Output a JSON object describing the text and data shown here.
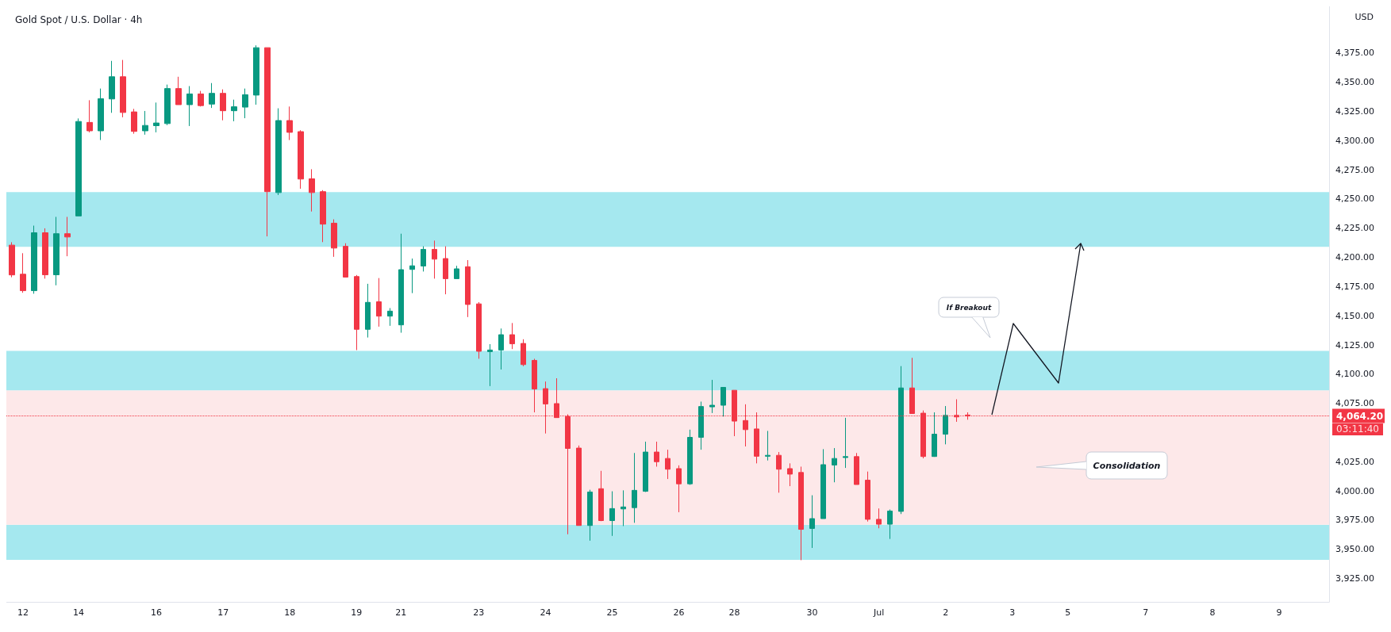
{
  "chart_data": {
    "type": "candlestick",
    "title": "Gold Spot / U.S. Dollar · 4h",
    "ylabel": "USD",
    "categories": [
      null,
      "12",
      null,
      null,
      null,
      null,
      "14",
      null,
      null,
      null,
      null,
      null,
      null,
      "16",
      null,
      null,
      null,
      null,
      null,
      "17",
      null,
      null,
      null,
      null,
      null,
      "18",
      null,
      null,
      null,
      null,
      null,
      "19",
      null,
      null,
      null,
      "21",
      null,
      null,
      null,
      null,
      null,
      null,
      "23",
      null,
      null,
      null,
      null,
      null,
      "24",
      null,
      null,
      null,
      null,
      null,
      "25",
      null,
      null,
      null,
      null,
      null,
      "26",
      null,
      null,
      null,
      null,
      "28",
      null,
      null,
      null,
      null,
      null,
      null,
      "30",
      null,
      null,
      null,
      null,
      null,
      "Jul",
      null,
      null,
      null,
      null,
      null,
      "2",
      null,
      null,
      null,
      null,
      null,
      "3",
      null,
      null,
      null,
      null,
      "5",
      null,
      null,
      null,
      null,
      null,
      null,
      "7",
      null,
      null,
      null,
      null,
      null,
      "8",
      null,
      null,
      null,
      null,
      null,
      "9",
      null,
      null,
      null,
      null
    ],
    "ohlc": [
      [
        4210.5,
        4213,
        4183,
        4185
      ],
      [
        4185.6,
        4203.6,
        4169.7,
        4171.5
      ],
      [
        4171.5,
        4227.2,
        4168.9,
        4221.1
      ],
      [
        4221.1,
        4224.9,
        4181.8,
        4185.1
      ],
      [
        4185.1,
        4234.7,
        4176.1,
        4220.3
      ],
      [
        4220.3,
        4234.7,
        4201.0,
        4217.5
      ],
      [
        4235.5,
        4319.0,
        4235.5,
        4316.4
      ],
      [
        4315.6,
        4334.6,
        4307.1,
        4308.4
      ],
      [
        4308.4,
        4344.6,
        4300.5,
        4335.9
      ],
      [
        4335.7,
        4368.3,
        4323.8,
        4354.7
      ],
      [
        4354.7,
        4369.1,
        4320.0,
        4324.1
      ],
      [
        4324.6,
        4327.2,
        4305.9,
        4307.9
      ],
      [
        4308.4,
        4325.4,
        4305.1,
        4313.0
      ],
      [
        4312.8,
        4332.6,
        4307.1,
        4315.1
      ],
      [
        4314.6,
        4348.0,
        4313.3,
        4344.6
      ],
      [
        4344.6,
        4354.7,
        4330.8,
        4330.8
      ],
      [
        4330.8,
        4346.7,
        4312.5,
        4340.0
      ],
      [
        4340.0,
        4342.6,
        4329.2,
        4330.0
      ],
      [
        4331.3,
        4349.3,
        4328.0,
        4340.5
      ],
      [
        4340.5,
        4343.9,
        4317.4,
        4325.6
      ],
      [
        4325.6,
        4335.1,
        4316.6,
        4329.0
      ],
      [
        4328.7,
        4344.6,
        4319.2,
        4339.3
      ],
      [
        4339.0,
        4381.6,
        4330.8,
        4379.6
      ],
      [
        4379.6,
        4379.6,
        4218.0,
        4256.3
      ],
      [
        4255.5,
        4327.7,
        4253.4,
        4317.2
      ],
      [
        4317.2,
        4329.2,
        4300.5,
        4307.1
      ],
      [
        4307.7,
        4308.9,
        4258.8,
        4267.1
      ],
      [
        4267.3,
        4275.5,
        4239.3,
        4255.5
      ],
      [
        4256.3,
        4257.6,
        4213.1,
        4228.5
      ],
      [
        4229.3,
        4232.6,
        4200.5,
        4208.0
      ],
      [
        4209.5,
        4212.1,
        4183.1,
        4183.1
      ],
      [
        4183.6,
        4184.9,
        4120.6,
        4138.4
      ],
      [
        4138.4,
        4177.4,
        4131.4,
        4161.5
      ],
      [
        4162.0,
        4182.3,
        4140.7,
        4149.7
      ],
      [
        4149.7,
        4156.6,
        4141.4,
        4154.0
      ],
      [
        4142.2,
        4220.3,
        4135.5,
        4189.5
      ],
      [
        4189.7,
        4199.0,
        4169.4,
        4192.8
      ],
      [
        4192.6,
        4209.5,
        4187.9,
        4206.9
      ],
      [
        4206.9,
        4214.4,
        4181.8,
        4198.5
      ],
      [
        4199.0,
        4209.5,
        4168.4,
        4181.8
      ],
      [
        4181.8,
        4192.8,
        4181.8,
        4190.2
      ],
      [
        4192.0,
        4197.7,
        4148.9,
        4159.7
      ],
      [
        4160.2,
        4161.7,
        4113.2,
        4119.6
      ],
      [
        4119.3,
        4125.7,
        4089.8,
        4120.7
      ],
      [
        4120.7,
        4139.1,
        4104.0,
        4133.8
      ],
      [
        4133.8,
        4143.8,
        4121.5,
        4126.0
      ],
      [
        4126.3,
        4129.9,
        4106.8,
        4108.2
      ],
      [
        4111.8,
        4113.2,
        4067.3,
        4087.3
      ],
      [
        4087.6,
        4093.7,
        4049.2,
        4074.5
      ],
      [
        4074.8,
        4096.5,
        4062.8,
        4062.8
      ],
      [
        4063.7,
        4065.6,
        3962.9,
        4036.4
      ],
      [
        4036.7,
        4038.9,
        3970.4,
        3970.4
      ],
      [
        3970.4,
        4001.0,
        3957.4,
        3999.1
      ],
      [
        4001.9,
        4017.2,
        3974.1,
        3974.6
      ],
      [
        3974.6,
        3999.7,
        3961.5,
        3984.9
      ],
      [
        3984.6,
        4000.5,
        3969.9,
        3986.3
      ],
      [
        3985.7,
        4032.5,
        3972.7,
        4000.5
      ],
      [
        3999.7,
        4042.2,
        3999.1,
        4033.3
      ],
      [
        4033.3,
        4042.2,
        4020.8,
        4025.0
      ],
      [
        4027.8,
        4035.3,
        4010.2,
        4018.6
      ],
      [
        4019.1,
        4021.9,
        3981.8,
        4006.1
      ],
      [
        4006.1,
        4052.5,
        4005.2,
        4045.9
      ],
      [
        4045.9,
        4076.5,
        4035.3,
        4072.3
      ],
      [
        4072.0,
        4095.1,
        4066.7,
        4073.4
      ],
      [
        4073.4,
        4088.7,
        4063.7,
        4088.7
      ],
      [
        4086.2,
        4086.2,
        4046.9,
        4059.8
      ],
      [
        4060.3,
        4074.2,
        4038.1,
        4052.5
      ],
      [
        4053.1,
        4067.3,
        4023.6,
        4029.7
      ],
      [
        4029.7,
        4051.4,
        4026.1,
        4030.5
      ],
      [
        4030.5,
        4033.3,
        3998.5,
        4018.6
      ],
      [
        4019.1,
        4023.6,
        4004.1,
        4014.4
      ],
      [
        4015.8,
        4020.8,
        3940.7,
        3967.1
      ],
      [
        3967.9,
        3996.3,
        3951.2,
        3976.3
      ],
      [
        3976.3,
        4035.8,
        3976.3,
        4022.5
      ],
      [
        4022.2,
        4036.7,
        4007.4,
        4027.8
      ],
      [
        4028.6,
        4062.6,
        4019.7,
        4029.4
      ],
      [
        4029.4,
        4032.5,
        4005.5,
        4005.5
      ],
      [
        4009.2,
        4016.6,
        3973.8,
        3975.7
      ],
      [
        3975.7,
        3985.0,
        3968.0,
        3971.5
      ],
      [
        3971.5,
        3984.1,
        3958.9,
        3982.8
      ],
      [
        3982.5,
        4106.9,
        3980.2,
        4088.2
      ],
      [
        4088.2,
        4114.0,
        4066.3,
        4066.3
      ],
      [
        4066.6,
        4068.9,
        4027.9,
        4029.5
      ],
      [
        4029.5,
        4067.3,
        4029.2,
        4048.6
      ],
      [
        4048.6,
        4072.7,
        4039.9,
        4064.7
      ],
      [
        4064.7,
        4078.5,
        4059.2,
        4063.4
      ],
      [
        4065.0,
        4067.3,
        4061.0,
        4064.2
      ],
      null,
      null,
      null,
      null,
      null,
      null,
      null,
      null,
      null,
      null,
      null,
      null,
      null,
      null,
      null,
      null,
      null,
      null,
      null,
      null,
      null,
      null,
      null,
      null,
      null,
      null,
      null,
      null,
      null,
      null,
      null,
      null
    ],
    "colors": [
      "#f23645",
      "#f23645",
      "#089981",
      "#f23645",
      "#089981",
      "#f23645",
      "#089981",
      "#f23645",
      "#089981",
      "#089981",
      "#f23645",
      "#f23645",
      "#089981",
      "#089981",
      "#089981",
      "#f23645",
      "#089981",
      "#f23645",
      "#089981",
      "#f23645",
      "#089981",
      "#089981",
      "#089981",
      "#f23645",
      "#089981",
      "#f23645",
      "#f23645",
      "#f23645",
      "#f23645",
      "#f23645",
      "#f23645",
      "#f23645",
      "#089981",
      "#f23645",
      "#089981",
      "#089981",
      "#089981",
      "#089981",
      "#f23645",
      "#f23645",
      "#089981",
      "#f23645",
      "#f23645",
      "#089981",
      "#089981",
      "#f23645",
      "#f23645",
      "#f23645",
      "#f23645",
      "#f23645",
      "#f23645",
      "#f23645",
      "#089981",
      "#f23645",
      "#089981",
      "#089981",
      "#089981",
      "#089981",
      "#f23645",
      "#f23645",
      "#f23645",
      "#089981",
      "#089981",
      "#089981",
      "#089981",
      "#f23645",
      "#f23645",
      "#f23645",
      "#089981",
      "#f23645",
      "#f23645",
      "#f23645",
      "#089981",
      "#089981",
      "#089981",
      "#089981",
      "#f23645",
      "#f23645",
      "#f23645",
      "#089981",
      "#089981",
      "#f23645",
      "#f23645",
      "#089981",
      "#089981",
      "#f23645",
      "#f23645",
      null,
      null,
      null,
      null,
      null,
      null,
      null,
      null,
      null,
      null,
      null,
      null,
      null,
      null,
      null,
      null,
      null,
      null,
      null,
      null,
      null,
      null,
      null,
      null,
      null,
      null,
      null,
      null,
      null,
      null,
      null,
      null
    ],
    "ylim": [
      3905,
      4415
    ],
    "yticks": [
      {
        "value": 3925,
        "label": "3,925.00"
      },
      {
        "value": 3950,
        "label": "3,950.00"
      },
      {
        "value": 3975,
        "label": "3,975.00"
      },
      {
        "value": 4000,
        "label": "4,000.00"
      },
      {
        "value": 4025,
        "label": "4,025.00"
      },
      {
        "value": 4075,
        "label": "4,075.00"
      },
      {
        "value": 4100,
        "label": "4,100.00"
      },
      {
        "value": 4125,
        "label": "4,125.00"
      },
      {
        "value": 4150,
        "label": "4,150.00"
      },
      {
        "value": 4175,
        "label": "4,175.00"
      },
      {
        "value": 4200,
        "label": "4,200.00"
      },
      {
        "value": 4225,
        "label": "4,225.00"
      },
      {
        "value": 4250,
        "label": "4,250.00"
      },
      {
        "value": 4275,
        "label": "4,275.00"
      },
      {
        "value": 4300,
        "label": "4,300.00"
      },
      {
        "value": 4325,
        "label": "4,325.00"
      },
      {
        "value": 4350,
        "label": "4,350.00"
      },
      {
        "value": 4375,
        "label": "4,375.00"
      }
    ],
    "grid": false,
    "ref_lines": [
      {
        "axis": "y",
        "value": 4064.2,
        "label": "4,064.20",
        "color": "#f23645",
        "line_style": "dotted"
      }
    ],
    "bands": [
      {
        "axis": "y",
        "from": 4209,
        "to": 4256,
        "color": "#a5e8ef"
      },
      {
        "axis": "y",
        "from": 4086,
        "to": 4120,
        "color": "#a5e8ef"
      },
      {
        "axis": "y",
        "from": 3941,
        "to": 3971,
        "color": "#a5e8ef"
      },
      {
        "axis": "y",
        "from": 3971,
        "to": 4086,
        "color": "#fde8e9"
      }
    ],
    "annotations": [
      "If Breakout",
      "Consolidation",
      "03:11:40"
    ]
  }
}
